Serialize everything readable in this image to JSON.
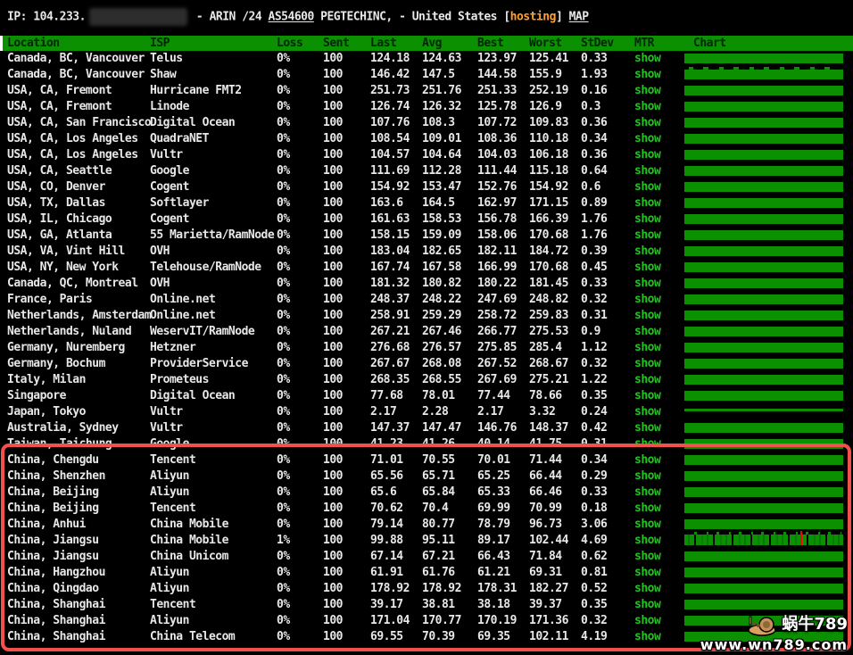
{
  "header": {
    "ip_prefix": "IP: 104.233.",
    "after_blur": "- ARIN /24",
    "asn": "AS54600",
    "org_text": "PEGTECHINC, - United States",
    "tag_open": "[",
    "tag": "hosting",
    "tag_close": "]",
    "map": "MAP"
  },
  "table": {
    "columns": [
      "Location",
      "ISP",
      "Loss",
      "Sent",
      "Last",
      "Avg",
      "Best",
      "Worst",
      "StDev",
      "MTR",
      "Chart"
    ],
    "mtr_link_label": "show",
    "rows": [
      {
        "loc": "Canada, BC, Vancouver",
        "isp": "Telus",
        "loss": "0%",
        "sent": "100",
        "last": "124.18",
        "avg": "124.63",
        "best": "123.97",
        "worst": "125.41",
        "stdev": "0.33",
        "mtr": "show",
        "chart": "flat",
        "marker": false
      },
      {
        "loc": "Canada, BC, Vancouver",
        "isp": "Shaw",
        "loss": "0%",
        "sent": "100",
        "last": "146.42",
        "avg": "147.5",
        "best": "144.58",
        "worst": "155.9",
        "stdev": "1.93",
        "mtr": "show",
        "chart": "spiky",
        "marker": false
      },
      {
        "loc": "USA, CA, Fremont",
        "isp": "Hurricane FMT2",
        "loss": "0%",
        "sent": "100",
        "last": "251.73",
        "avg": "251.76",
        "best": "251.33",
        "worst": "252.19",
        "stdev": "0.16",
        "mtr": "show",
        "chart": "flat",
        "marker": false
      },
      {
        "loc": "USA, CA, Fremont",
        "isp": "Linode",
        "loss": "0%",
        "sent": "100",
        "last": "126.74",
        "avg": "126.32",
        "best": "125.78",
        "worst": "126.9",
        "stdev": "0.3",
        "mtr": "show",
        "chart": "flat",
        "marker": false
      },
      {
        "loc": "USA, CA, San Francisco",
        "isp": "Digital Ocean",
        "loss": "0%",
        "sent": "100",
        "last": "107.76",
        "avg": "108.3",
        "best": "107.72",
        "worst": "109.83",
        "stdev": "0.36",
        "mtr": "show",
        "chart": "flat",
        "marker": false
      },
      {
        "loc": "USA, CA, Los Angeles",
        "isp": "QuadraNET",
        "loss": "0%",
        "sent": "100",
        "last": "108.54",
        "avg": "109.01",
        "best": "108.36",
        "worst": "110.18",
        "stdev": "0.34",
        "mtr": "show",
        "chart": "flat",
        "marker": false
      },
      {
        "loc": "USA, CA, Los Angeles",
        "isp": "Vultr",
        "loss": "0%",
        "sent": "100",
        "last": "104.57",
        "avg": "104.64",
        "best": "104.03",
        "worst": "106.18",
        "stdev": "0.36",
        "mtr": "show",
        "chart": "flat",
        "marker": false
      },
      {
        "loc": "USA, CA, Seattle",
        "isp": "Google",
        "loss": "0%",
        "sent": "100",
        "last": "111.69",
        "avg": "112.28",
        "best": "111.44",
        "worst": "115.18",
        "stdev": "0.64",
        "mtr": "show",
        "chart": "flat",
        "marker": false
      },
      {
        "loc": "USA, CO, Denver",
        "isp": "Cogent",
        "loss": "0%",
        "sent": "100",
        "last": "154.92",
        "avg": "153.47",
        "best": "152.76",
        "worst": "154.92",
        "stdev": "0.6",
        "mtr": "show",
        "chart": "flat",
        "marker": false
      },
      {
        "loc": "USA, TX, Dallas",
        "isp": "Softlayer",
        "loss": "0%",
        "sent": "100",
        "last": "163.6",
        "avg": "164.5",
        "best": "162.97",
        "worst": "171.15",
        "stdev": "0.89",
        "mtr": "show",
        "chart": "flat",
        "marker": false
      },
      {
        "loc": "USA, IL, Chicago",
        "isp": "Cogent",
        "loss": "0%",
        "sent": "100",
        "last": "161.63",
        "avg": "158.53",
        "best": "156.78",
        "worst": "166.39",
        "stdev": "1.76",
        "mtr": "show",
        "chart": "flat",
        "marker": false
      },
      {
        "loc": "USA, GA, Atlanta",
        "isp": "55 Marietta/RamNode",
        "loss": "0%",
        "sent": "100",
        "last": "158.15",
        "avg": "159.09",
        "best": "158.06",
        "worst": "170.68",
        "stdev": "1.76",
        "mtr": "show",
        "chart": "flat",
        "marker": false
      },
      {
        "loc": "USA, VA, Vint Hill",
        "isp": "OVH",
        "loss": "0%",
        "sent": "100",
        "last": "183.04",
        "avg": "182.65",
        "best": "182.11",
        "worst": "184.72",
        "stdev": "0.39",
        "mtr": "show",
        "chart": "flat",
        "marker": false
      },
      {
        "loc": "USA, NY, New York",
        "isp": "Telehouse/RamNode",
        "loss": "0%",
        "sent": "100",
        "last": "167.74",
        "avg": "167.58",
        "best": "166.99",
        "worst": "170.68",
        "stdev": "0.45",
        "mtr": "show",
        "chart": "flat",
        "marker": false
      },
      {
        "loc": "Canada, QC, Montreal",
        "isp": "OVH",
        "loss": "0%",
        "sent": "100",
        "last": "181.32",
        "avg": "180.82",
        "best": "180.22",
        "worst": "181.45",
        "stdev": "0.33",
        "mtr": "show",
        "chart": "flat",
        "marker": false
      },
      {
        "loc": "France, Paris",
        "isp": "Online.net",
        "loss": "0%",
        "sent": "100",
        "last": "248.37",
        "avg": "248.22",
        "best": "247.69",
        "worst": "248.82",
        "stdev": "0.32",
        "mtr": "show",
        "chart": "flat",
        "marker": false
      },
      {
        "loc": "Netherlands, Amsterdam",
        "isp": "Online.net",
        "loss": "0%",
        "sent": "100",
        "last": "258.91",
        "avg": "259.29",
        "best": "258.72",
        "worst": "259.83",
        "stdev": "0.31",
        "mtr": "show",
        "chart": "flat",
        "marker": false
      },
      {
        "loc": "Netherlands, Nuland",
        "isp": "WeservIT/RamNode",
        "loss": "0%",
        "sent": "100",
        "last": "267.21",
        "avg": "267.46",
        "best": "266.77",
        "worst": "275.53",
        "stdev": "0.9",
        "mtr": "show",
        "chart": "flat",
        "marker": false
      },
      {
        "loc": "Germany, Nuremberg",
        "isp": "Hetzner",
        "loss": "0%",
        "sent": "100",
        "last": "276.68",
        "avg": "276.57",
        "best": "275.85",
        "worst": "285.4",
        "stdev": "1.12",
        "mtr": "show",
        "chart": "flat",
        "marker": false
      },
      {
        "loc": "Germany, Bochum",
        "isp": "ProviderService",
        "loss": "0%",
        "sent": "100",
        "last": "267.67",
        "avg": "268.08",
        "best": "267.52",
        "worst": "268.67",
        "stdev": "0.32",
        "mtr": "show",
        "chart": "flat",
        "marker": false
      },
      {
        "loc": "Italy, Milan",
        "isp": "Prometeus",
        "loss": "0%",
        "sent": "100",
        "last": "268.35",
        "avg": "268.55",
        "best": "267.69",
        "worst": "275.21",
        "stdev": "1.22",
        "mtr": "show",
        "chart": "flat",
        "marker": false
      },
      {
        "loc": "Singapore",
        "isp": "Digital Ocean",
        "loss": "0%",
        "sent": "100",
        "last": "77.68",
        "avg": "78.01",
        "best": "77.44",
        "worst": "78.66",
        "stdev": "0.35",
        "mtr": "show",
        "chart": "flat",
        "marker": false
      },
      {
        "loc": "Japan, Tokyo",
        "isp": "Vultr",
        "loss": "0%",
        "sent": "100",
        "last": "2.17",
        "avg": "2.28",
        "best": "2.17",
        "worst": "3.32",
        "stdev": "0.24",
        "mtr": "show",
        "chart": "thin",
        "marker": false
      },
      {
        "loc": "Australia, Sydney",
        "isp": "Vultr",
        "loss": "0%",
        "sent": "100",
        "last": "147.37",
        "avg": "147.47",
        "best": "146.76",
        "worst": "148.37",
        "stdev": "0.42",
        "mtr": "show",
        "chart": "flat",
        "marker": false
      },
      {
        "loc": "Taiwan, Taichung",
        "isp": "Google",
        "loss": "0%",
        "sent": "100",
        "last": "41.23",
        "avg": "41.26",
        "best": "40.14",
        "worst": "41.75",
        "stdev": "0.31",
        "mtr": "show",
        "chart": "flat",
        "marker": false
      },
      {
        "loc": "China, Chengdu",
        "isp": "Tencent",
        "loss": "0%",
        "sent": "100",
        "last": "71.01",
        "avg": "70.55",
        "best": "70.01",
        "worst": "71.44",
        "stdev": "0.34",
        "mtr": "show",
        "chart": "flat",
        "marker": false
      },
      {
        "loc": "China, Shenzhen",
        "isp": "Aliyun",
        "loss": "0%",
        "sent": "100",
        "last": "65.56",
        "avg": "65.71",
        "best": "65.25",
        "worst": "66.44",
        "stdev": "0.29",
        "mtr": "show",
        "chart": "flat",
        "marker": false
      },
      {
        "loc": "China, Beijing",
        "isp": "Aliyun",
        "loss": "0%",
        "sent": "100",
        "last": "65.6",
        "avg": "65.84",
        "best": "65.33",
        "worst": "66.46",
        "stdev": "0.33",
        "mtr": "show",
        "chart": "flat",
        "marker": false
      },
      {
        "loc": "China, Beijing",
        "isp": "Tencent",
        "loss": "0%",
        "sent": "100",
        "last": "70.62",
        "avg": "70.4",
        "best": "69.99",
        "worst": "70.99",
        "stdev": "0.18",
        "mtr": "show",
        "chart": "flat",
        "marker": false
      },
      {
        "loc": "China, Anhui",
        "isp": "China Mobile",
        "loss": "0%",
        "sent": "100",
        "last": "79.14",
        "avg": "80.77",
        "best": "78.79",
        "worst": "96.73",
        "stdev": "3.06",
        "mtr": "show",
        "chart": "flat",
        "marker": false
      },
      {
        "loc": "China, Jiangsu",
        "isp": "China Mobile",
        "loss": "1%",
        "sent": "100",
        "last": "99.88",
        "avg": "95.11",
        "best": "89.17",
        "worst": "102.44",
        "stdev": "4.69",
        "mtr": "show",
        "chart": "jagged",
        "marker": true
      },
      {
        "loc": "China, Jiangsu",
        "isp": "China Unicom",
        "loss": "0%",
        "sent": "100",
        "last": "67.14",
        "avg": "67.21",
        "best": "66.43",
        "worst": "71.84",
        "stdev": "0.62",
        "mtr": "show",
        "chart": "flat",
        "marker": false
      },
      {
        "loc": "China, Hangzhou",
        "isp": "Aliyun",
        "loss": "0%",
        "sent": "100",
        "last": "61.91",
        "avg": "61.76",
        "best": "61.21",
        "worst": "69.31",
        "stdev": "0.81",
        "mtr": "show",
        "chart": "flat",
        "marker": false
      },
      {
        "loc": "China, Qingdao",
        "isp": "Aliyun",
        "loss": "0%",
        "sent": "100",
        "last": "178.92",
        "avg": "178.92",
        "best": "178.31",
        "worst": "182.27",
        "stdev": "0.52",
        "mtr": "show",
        "chart": "flat",
        "marker": false
      },
      {
        "loc": "China, Shanghai",
        "isp": "Tencent",
        "loss": "0%",
        "sent": "100",
        "last": "39.17",
        "avg": "38.81",
        "best": "38.18",
        "worst": "39.37",
        "stdev": "0.35",
        "mtr": "show",
        "chart": "flat",
        "marker": false
      },
      {
        "loc": "China, Shanghai",
        "isp": "Aliyun",
        "loss": "0%",
        "sent": "100",
        "last": "171.04",
        "avg": "170.77",
        "best": "170.19",
        "worst": "171.36",
        "stdev": "0.32",
        "mtr": "show",
        "chart": "flat",
        "marker": false
      },
      {
        "loc": "China, Shanghai",
        "isp": "China Telecom",
        "loss": "0%",
        "sent": "100",
        "last": "69.55",
        "avg": "70.39",
        "best": "69.35",
        "worst": "102.11",
        "stdev": "4.19",
        "mtr": "show",
        "chart": "flat",
        "marker": false
      }
    ]
  },
  "watermark": {
    "name": "蜗牛789",
    "site": "www.wn789.com"
  },
  "colors": {
    "background": "#000000",
    "table_green": "#0a9000",
    "show_link_green": "#1fc41f",
    "row_text": "#e8e8e8",
    "hosting_tag_orange": "#ffa030",
    "highlight_box_red": "#f2504b",
    "loss_marker_red": "#ff0000"
  }
}
